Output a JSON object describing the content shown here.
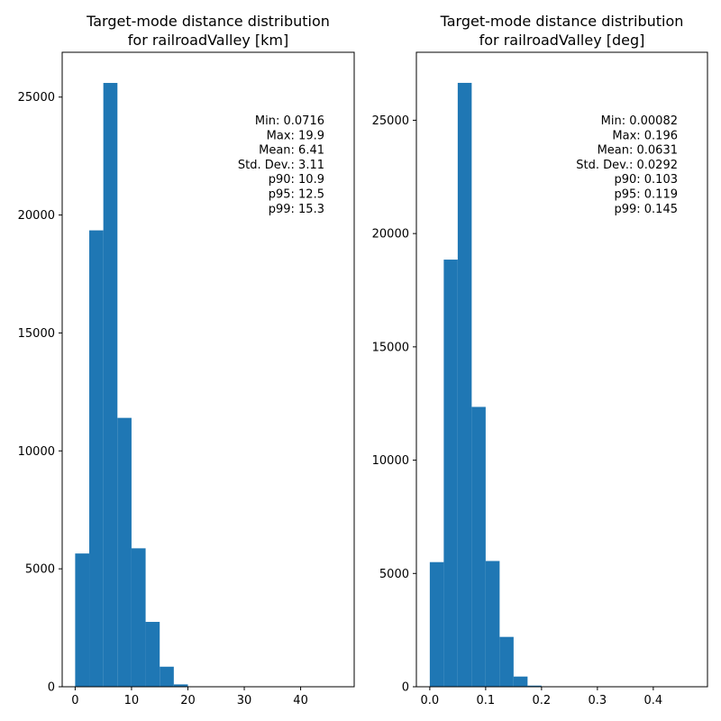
{
  "chart_data": [
    {
      "type": "bar",
      "title": "Target-mode distance distribution\nfor railroadValley [km]",
      "xlabel": "",
      "ylabel": "",
      "xlim": [
        -2.3,
        49.5
      ],
      "ylim": [
        0,
        26900
      ],
      "xticks": [
        0,
        10,
        20,
        30,
        40
      ],
      "yticks": [
        0,
        5000,
        10000,
        15000,
        20000,
        25000
      ],
      "bins": [
        {
          "x0": 0.0,
          "x1": 2.5,
          "value": 5650
        },
        {
          "x0": 2.5,
          "x1": 5.0,
          "value": 19350
        },
        {
          "x0": 5.0,
          "x1": 7.5,
          "value": 25600
        },
        {
          "x0": 7.5,
          "x1": 10.0,
          "value": 11400
        },
        {
          "x0": 10.0,
          "x1": 12.5,
          "value": 5870
        },
        {
          "x0": 12.5,
          "x1": 15.0,
          "value": 2750
        },
        {
          "x0": 15.0,
          "x1": 17.5,
          "value": 850
        },
        {
          "x0": 17.5,
          "x1": 20.0,
          "value": 100
        }
      ],
      "stats": [
        "Min: 0.0716",
        "Max: 19.9",
        "Mean: 6.41",
        "Std. Dev.: 3.11",
        "p90: 10.9",
        "p95: 12.5",
        "p99: 15.3"
      ],
      "grid": false,
      "color": "#1f77b4"
    },
    {
      "type": "bar",
      "title": "Target-mode distance distribution\nfor railroadValley [deg]",
      "xlabel": "",
      "ylabel": "",
      "xlim": [
        -0.024,
        0.497
      ],
      "ylim": [
        0,
        28000
      ],
      "xticks": [
        0.0,
        0.1,
        0.2,
        0.3,
        0.4
      ],
      "tick_labels": [
        "0.0",
        "0.1",
        "0.2",
        "0.3",
        "0.4"
      ],
      "yticks": [
        0,
        5000,
        10000,
        15000,
        20000,
        25000
      ],
      "bins": [
        {
          "x0": 0.0,
          "x1": 0.025,
          "value": 5500
        },
        {
          "x0": 0.025,
          "x1": 0.05,
          "value": 18850
        },
        {
          "x0": 0.05,
          "x1": 0.075,
          "value": 26650
        },
        {
          "x0": 0.075,
          "x1": 0.1,
          "value": 12350
        },
        {
          "x0": 0.1,
          "x1": 0.125,
          "value": 5550
        },
        {
          "x0": 0.125,
          "x1": 0.15,
          "value": 2200
        },
        {
          "x0": 0.15,
          "x1": 0.175,
          "value": 450
        },
        {
          "x0": 0.175,
          "x1": 0.2,
          "value": 50
        }
      ],
      "stats": [
        "Min: 0.00082",
        "Max: 0.196",
        "Mean: 0.0631",
        "Std. Dev.: 0.0292",
        "p90: 0.103",
        "p95: 0.119",
        "p99: 0.145"
      ],
      "grid": false,
      "color": "#1f77b4"
    }
  ]
}
